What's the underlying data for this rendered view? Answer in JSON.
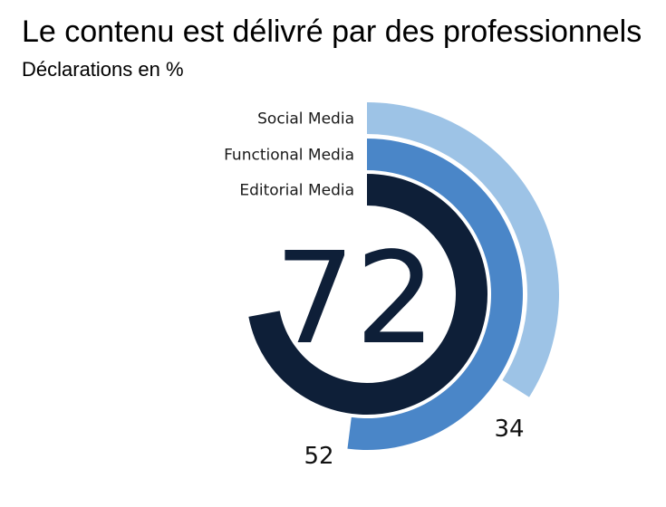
{
  "chart_data": {
    "type": "radial-bar",
    "title": "Le contenu est délivré par des professionnels",
    "subtitle": "Déclarations en %",
    "value_max": 100,
    "center_label": "72",
    "series": [
      {
        "name": "Social Media",
        "value": 34,
        "color": "#9DC3E6",
        "value_label": "34"
      },
      {
        "name": "Functional Media",
        "value": 52,
        "color": "#4A86C8",
        "value_label": "52"
      },
      {
        "name": "Editorial Media",
        "value": 72,
        "color": "#0E1F38",
        "value_label": "72"
      }
    ]
  }
}
